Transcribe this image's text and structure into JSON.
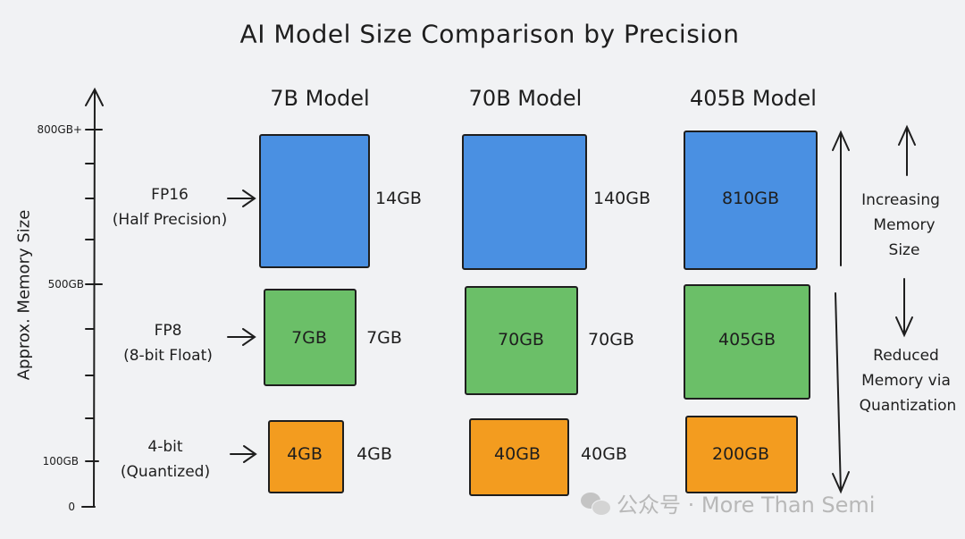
{
  "title": "AI Model Size Comparison by Precision",
  "axis": {
    "label": "Approx. Memory Size",
    "ticks": [
      "800GB+",
      "500GB",
      "100GB",
      "0"
    ]
  },
  "columns": [
    "7B Model",
    "70B Model",
    "405B Model"
  ],
  "rows": [
    {
      "name": "FP16",
      "sub": "(Half Precision)",
      "color": "#4a90e2",
      "values": [
        "14GB",
        "140GB",
        "810GB"
      ]
    },
    {
      "name": "FP8",
      "sub": "(8-bit Float)",
      "color": "#6bbf68",
      "values": [
        "7GB",
        "70GB",
        "405GB"
      ]
    },
    {
      "name": "4-bit",
      "sub": "(Quantized)",
      "color": "#f39c1f",
      "values": [
        "4GB",
        "40GB",
        "200GB"
      ]
    }
  ],
  "side_notes": {
    "up": [
      "Increasing",
      "Memory",
      "Size"
    ],
    "down": [
      "Reduced",
      "Memory via",
      "Quantization"
    ]
  },
  "watermark": "公众号 · More Than Semi"
}
